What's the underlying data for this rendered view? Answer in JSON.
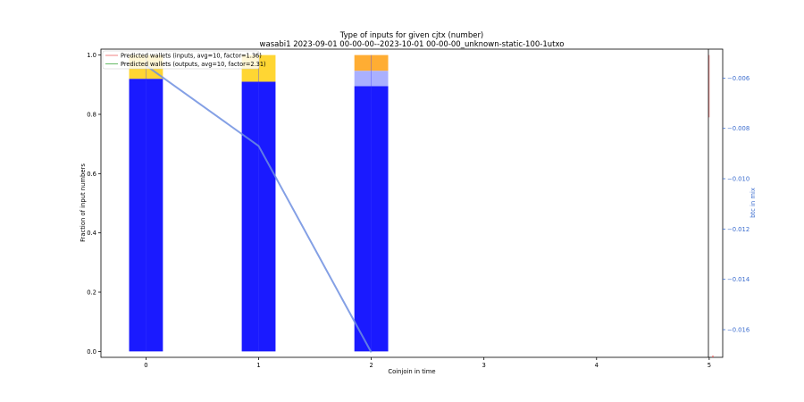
{
  "chart_data": {
    "type": "bar",
    "title": "Type of inputs for given cjtx (number)",
    "subtitle": "wasabi1 2023-09-01 00-00-00--2023-10-01 00-00-00_unknown-static-100-1utxo",
    "xlabel": "Coinjoin in time",
    "ylabel": "Fraction of input numbers",
    "y2label": "btc in mix",
    "x_ticks": [
      0,
      1,
      2,
      3,
      4,
      5
    ],
    "xlim": [
      -0.4,
      5.12
    ],
    "ylim": [
      -0.02,
      1.02
    ],
    "y_ticks": [
      0.0,
      0.2,
      0.4,
      0.6,
      0.8,
      1.0
    ],
    "y2lim": [
      -0.0171,
      -0.00485
    ],
    "y2_ticks": [
      -0.016,
      -0.014,
      -0.012,
      -0.01,
      -0.008,
      -0.006
    ],
    "grid": false,
    "legend_position": "top-left",
    "categories": [
      0,
      1,
      2
    ],
    "stacks": [
      {
        "color": "#1a1aff",
        "values": [
          0.92,
          0.91,
          0.895
        ]
      },
      {
        "color": "#aab0ff",
        "values": [
          0.0,
          0.0,
          0.052
        ]
      },
      {
        "color": "#ffd633",
        "values": [
          0.08,
          0.09,
          0.0
        ]
      },
      {
        "color": "#ffad33",
        "values": [
          0.0,
          0.0,
          0.053
        ]
      }
    ],
    "lines": [
      {
        "name": "Predicted wallets (inputs, avg=10, factor=1.36)",
        "color": "#f08080"
      },
      {
        "name": "Predicted wallets (outputs, avg=10, factor=2.31)",
        "color": "#66bb66"
      }
    ],
    "btc_line": {
      "color": "#6f8fe0",
      "x": [
        0,
        1,
        2
      ],
      "y": [
        -0.0055,
        -0.0087,
        -0.0169
      ]
    },
    "marker_line": {
      "x": 5,
      "y_from": 0.79,
      "y_to": 1.0,
      "color": "#f08080"
    },
    "divider_x": 5.12
  }
}
